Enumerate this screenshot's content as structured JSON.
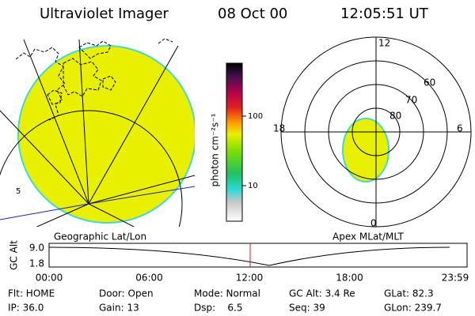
{
  "header": {
    "title": "Ultraviolet Imager",
    "date": "08 Oct 00",
    "time": "12:05:51 UT"
  },
  "left_panel": {
    "label": "Geographic Lat/Lon",
    "edge_label": "5"
  },
  "colorbar": {
    "title": "photon cm⁻²s⁻¹",
    "labels": [
      "100",
      "10"
    ]
  },
  "right_panel": {
    "label": "Apex MLat/MLT",
    "hours": [
      "12",
      "18",
      "6",
      "0"
    ],
    "latitudes": [
      "80",
      "70",
      "60"
    ]
  },
  "altitude_plot": {
    "y_label": "GC Alt",
    "y_ticks": [
      "9.0",
      "1.8"
    ],
    "x_ticks": [
      "00:00",
      "06:00",
      "12:00",
      "18:00",
      "23:59"
    ]
  },
  "footer": {
    "rows": [
      [
        "Flt: HOME",
        "Door: Open",
        "Mode: Normal",
        "GC Alt: 3.4 Re",
        "GLat: 82.3"
      ],
      [
        "IP: 36.0",
        "Gain: 13",
        "Dsp:    6.5",
        "Seq: 39",
        "GLon: 239.7"
      ]
    ]
  }
}
